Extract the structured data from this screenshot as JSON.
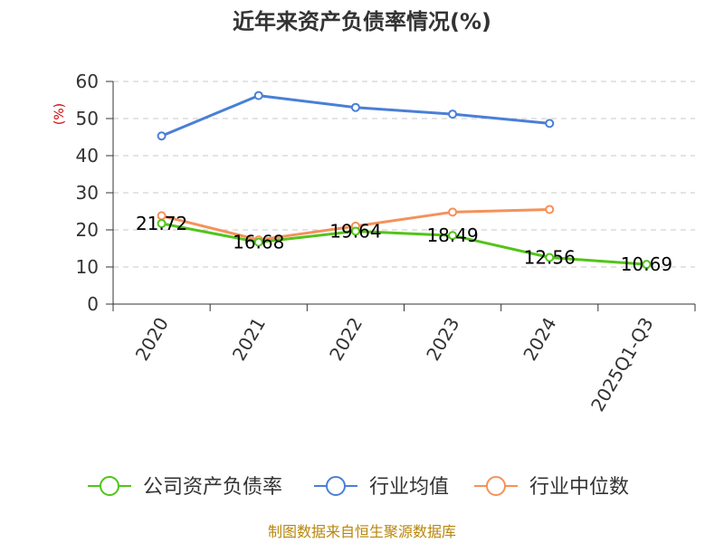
{
  "chart_data": {
    "type": "line",
    "title": "近年来资产负债率情况(%)",
    "ylabel": "(%)",
    "categories": [
      "2020",
      "2021",
      "2022",
      "2023",
      "2024",
      "2025Q1-Q3"
    ],
    "ylim": [
      0,
      60
    ],
    "yticks": [
      "0",
      "10",
      "20",
      "30",
      "40",
      "50",
      "60"
    ],
    "grid": true,
    "legend_position": "bottom",
    "series": [
      {
        "name": "公司资产负债率",
        "color": "#52c41a",
        "values": [
          21.72,
          16.68,
          19.64,
          18.49,
          12.56,
          10.69
        ],
        "labels": [
          "21.72",
          "16.68",
          "19.64",
          "18.49",
          "12.56",
          "10.69"
        ]
      },
      {
        "name": "行业均值",
        "color": "#4a7fd6",
        "values": [
          45.3,
          56.2,
          53.0,
          51.2,
          48.7,
          null
        ]
      },
      {
        "name": "行业中位数",
        "color": "#f5915a",
        "values": [
          23.8,
          17.3,
          21.0,
          24.8,
          25.5,
          null
        ]
      }
    ]
  },
  "source": "制图数据来自恒生聚源数据库",
  "colors": {
    "axis": "#333333",
    "grid": "#c8c8c8",
    "ylabel": "#cc0000",
    "source": "#b8860b"
  }
}
